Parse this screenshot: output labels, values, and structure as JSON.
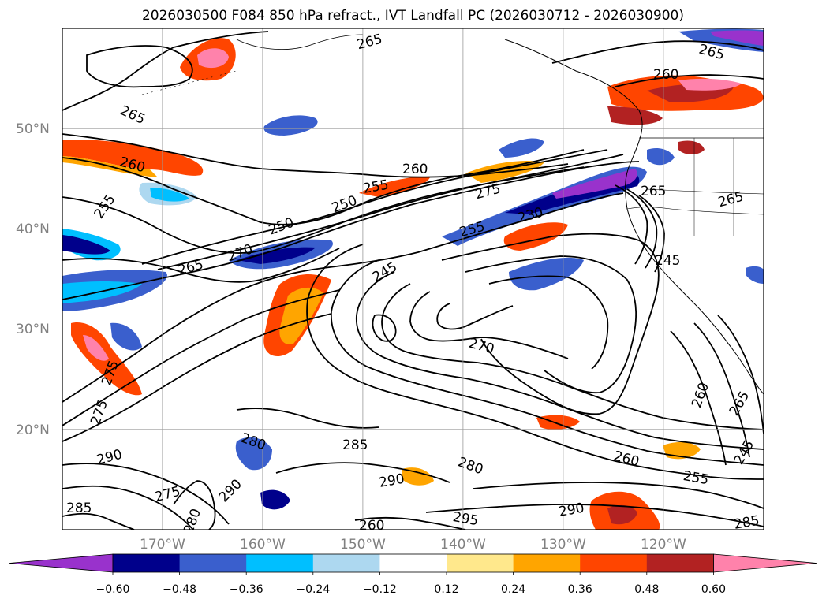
{
  "title": "2026030500 F084 850 hPa refract., IVT Landfall PC (2026030712 - 2026030900)",
  "map": {
    "lon_range": [
      -180,
      -110
    ],
    "lat_range": [
      10,
      60
    ],
    "lat_labels": [
      "50°N",
      "40°N",
      "30°N",
      "20°N"
    ],
    "lat_values": [
      50,
      40,
      30,
      20
    ],
    "lon_labels": [
      "170°W",
      "160°W",
      "150°W",
      "140°W",
      "130°W",
      "120°W"
    ],
    "lon_values": [
      -170,
      -160,
      -150,
      -140,
      -130,
      -120
    ],
    "contour_labels": [
      "265",
      "260",
      "265",
      "260",
      "255",
      "265",
      "270",
      "250",
      "250",
      "255",
      "260",
      "275",
      "230",
      "255",
      "245",
      "265",
      "265",
      "245",
      "270",
      "280",
      "285",
      "290",
      "290",
      "280",
      "275",
      "290",
      "280",
      "285",
      "295",
      "290",
      "260",
      "255",
      "260",
      "265",
      "245",
      "285",
      "265",
      "260",
      "275",
      "275"
    ],
    "contour_color": "#000000"
  },
  "colorbar": {
    "ticks": [
      "−0.60",
      "−0.48",
      "−0.36",
      "−0.24",
      "−0.12",
      "0.12",
      "0.24",
      "0.36",
      "0.48",
      "0.60"
    ],
    "colors": [
      "#9932CC",
      "#00008B",
      "#3A5FCD",
      "#00BFFF",
      "#ADD8F0",
      "#FFFFFF",
      "#FFE88C",
      "#FFA500",
      "#FF4500",
      "#B22222",
      "#FF82AB"
    ]
  }
}
